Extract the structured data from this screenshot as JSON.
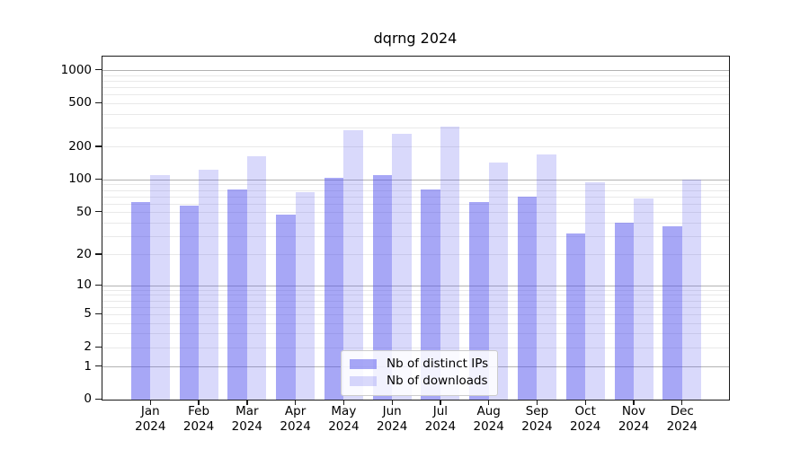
{
  "chart_data": {
    "type": "bar",
    "title": "dqrng 2024",
    "categories": [
      "Jan",
      "Feb",
      "Mar",
      "Apr",
      "May",
      "Jun",
      "Jul",
      "Aug",
      "Sep",
      "Oct",
      "Nov",
      "Dec"
    ],
    "x_year_label": "2024",
    "series": [
      {
        "name": "Nb of distinct IPs",
        "color": "rgba(80,80,238,0.5)",
        "values": [
          63,
          58,
          81,
          48,
          104,
          110,
          81,
          62,
          70,
          32,
          40,
          37
        ]
      },
      {
        "name": "Nb of downloads",
        "color": "rgba(80,80,238,0.22)",
        "values": [
          110,
          125,
          166,
          77,
          283,
          265,
          305,
          145,
          172,
          96,
          68,
          100
        ]
      }
    ],
    "yscale": "log1p",
    "y_ticks": [
      0,
      1,
      2,
      5,
      10,
      20,
      50,
      100,
      200,
      500,
      1000
    ],
    "ylim": [
      0,
      1400
    ],
    "xlabel": "",
    "ylabel": "",
    "grid": {
      "shown": true,
      "major_ticks": [
        1,
        10,
        100,
        1000
      ],
      "major_color": "#b3b3b3",
      "minor_color": "#e9e9e9"
    },
    "legend_position": "lower center"
  }
}
